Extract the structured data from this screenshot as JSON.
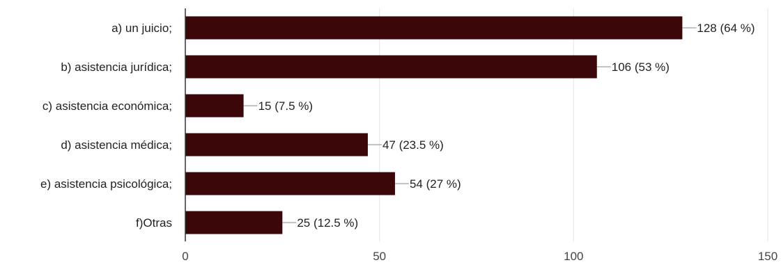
{
  "chart_data": {
    "type": "bar",
    "orientation": "horizontal",
    "categories": [
      "a) un juicio;",
      "b) asistencia jurídica;",
      "c) asistencia económica;",
      "d) asistencia médica;",
      "e) asistencia psicológica;",
      "f)Otras"
    ],
    "values": [
      128,
      106,
      15,
      47,
      54,
      25
    ],
    "data_labels": [
      "128 (64 %)",
      "106 (53 %)",
      "15 (7.5 %)",
      "47 (23.5 %)",
      "54 (27 %)",
      "25 (12.5 %)"
    ],
    "x_ticks": [
      "0",
      "50",
      "100",
      "150"
    ],
    "xlim": [
      0,
      150
    ],
    "grid": true,
    "legend": "none",
    "bar_color": "#3b0708",
    "title": "",
    "xlabel": "",
    "ylabel": ""
  }
}
